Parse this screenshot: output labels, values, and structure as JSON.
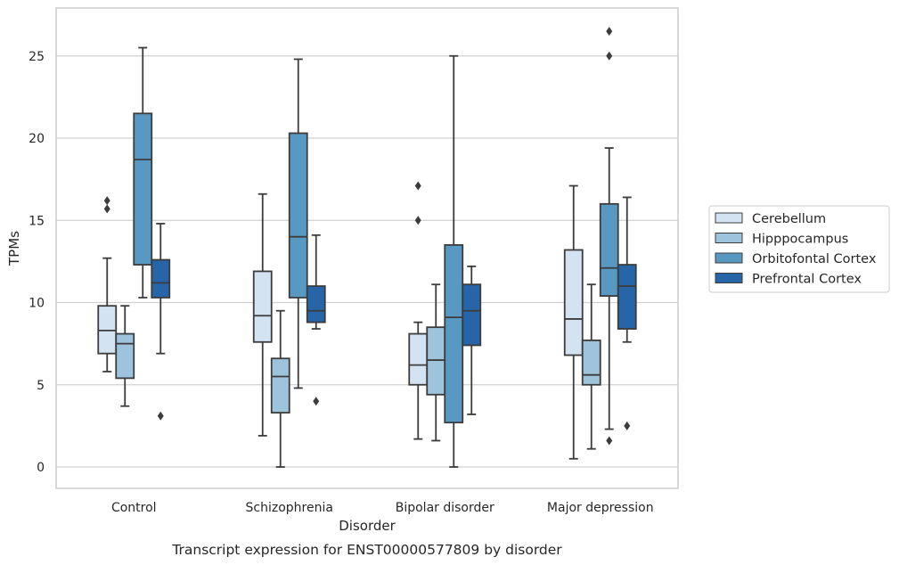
{
  "chart_data": {
    "type": "boxplot",
    "xlabel": "Disorder",
    "ylabel": "TPMs",
    "caption": "Transcript expression for ENST00000577809 by disorder",
    "ylim": [
      -1.3,
      27.6
    ],
    "y_ticks": [
      0,
      5,
      10,
      15,
      20,
      25
    ],
    "grid": "horizontal",
    "legend_position": "center-right",
    "categories": [
      "Control",
      "Schizophrenia",
      "Bipolar disorder",
      "Major depression"
    ],
    "series": [
      {
        "name": "Cerebellum",
        "color": "#d4e3f2",
        "boxes": [
          {
            "whisker_low": 5.8,
            "q1": 6.9,
            "median": 8.3,
            "q3": 9.8,
            "whisker_high": 12.7,
            "outliers": [
              15.7,
              16.2
            ]
          },
          {
            "whisker_low": 1.9,
            "q1": 7.6,
            "median": 9.2,
            "q3": 11.9,
            "whisker_high": 16.6,
            "outliers": []
          },
          {
            "whisker_low": 1.7,
            "q1": 5.0,
            "median": 6.2,
            "q3": 8.1,
            "whisker_high": 8.8,
            "outliers": [
              15.0,
              17.1
            ]
          },
          {
            "whisker_low": 0.5,
            "q1": 6.8,
            "median": 9.0,
            "q3": 13.2,
            "whisker_high": 17.1,
            "outliers": []
          }
        ]
      },
      {
        "name": "Hipppocampus",
        "color": "#9dc3dd",
        "boxes": [
          {
            "whisker_low": 3.7,
            "q1": 5.4,
            "median": 7.5,
            "q3": 8.1,
            "whisker_high": 9.8,
            "outliers": []
          },
          {
            "whisker_low": 0.0,
            "q1": 3.3,
            "median": 5.5,
            "q3": 6.6,
            "whisker_high": 9.5,
            "outliers": []
          },
          {
            "whisker_low": 1.6,
            "q1": 4.4,
            "median": 6.5,
            "q3": 8.5,
            "whisker_high": 11.1,
            "outliers": []
          },
          {
            "whisker_low": 1.1,
            "q1": 5.0,
            "median": 5.6,
            "q3": 7.7,
            "whisker_high": 11.1,
            "outliers": []
          }
        ]
      },
      {
        "name": "Orbitofontal Cortex",
        "color": "#5899c4",
        "boxes": [
          {
            "whisker_low": 10.3,
            "q1": 12.3,
            "median": 18.7,
            "q3": 21.5,
            "whisker_high": 25.5,
            "outliers": []
          },
          {
            "whisker_low": 4.8,
            "q1": 10.3,
            "median": 14.0,
            "q3": 20.3,
            "whisker_high": 24.8,
            "outliers": []
          },
          {
            "whisker_low": 0.0,
            "q1": 2.7,
            "median": 9.1,
            "q3": 13.5,
            "whisker_high": 25.0,
            "outliers": []
          },
          {
            "whisker_low": 2.3,
            "q1": 10.4,
            "median": 12.1,
            "q3": 16.0,
            "whisker_high": 19.4,
            "outliers": [
              1.6,
              25.0,
              26.5
            ]
          }
        ]
      },
      {
        "name": "Prefrontal Cortex",
        "color": "#2565a8",
        "boxes": [
          {
            "whisker_low": 6.9,
            "q1": 10.3,
            "median": 11.2,
            "q3": 12.6,
            "whisker_high": 14.8,
            "outliers": [
              3.1
            ]
          },
          {
            "whisker_low": 8.4,
            "q1": 8.8,
            "median": 9.5,
            "q3": 11.0,
            "whisker_high": 14.1,
            "outliers": [
              4.0
            ]
          },
          {
            "whisker_low": 3.2,
            "q1": 7.4,
            "median": 9.5,
            "q3": 11.1,
            "whisker_high": 12.2,
            "outliers": []
          },
          {
            "whisker_low": 7.6,
            "q1": 8.4,
            "median": 11.0,
            "q3": 12.3,
            "whisker_high": 16.4,
            "outliers": [
              2.5
            ]
          }
        ]
      }
    ]
  }
}
